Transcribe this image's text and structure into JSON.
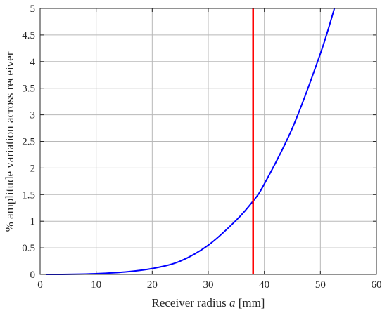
{
  "chart_data": {
    "type": "line",
    "title": "",
    "xlabel": "Receiver radius a [mm]",
    "xlabel_parts": {
      "prefix": "Receiver radius ",
      "italic": "a",
      "suffix": " [mm]"
    },
    "ylabel": "% amplitude variation across receiver",
    "xlim": [
      0,
      60
    ],
    "ylim": [
      0,
      5
    ],
    "xticks": [
      0,
      10,
      20,
      30,
      40,
      50,
      60
    ],
    "yticks": [
      0,
      0.5,
      1,
      1.5,
      2,
      2.5,
      3,
      3.5,
      4,
      4.5,
      5
    ],
    "xtick_labels": [
      "0",
      "10",
      "20",
      "30",
      "40",
      "50",
      "60"
    ],
    "ytick_labels": [
      "0",
      "0.5",
      "1",
      "1.5",
      "2",
      "2.5",
      "3",
      "3.5",
      "4",
      "4.5",
      "5"
    ],
    "grid": true,
    "series": [
      {
        "color": "#0000ff",
        "x": [
          1,
          5,
          10,
          15,
          20,
          25,
          30,
          35,
          38,
          40,
          45,
          50,
          52.5
        ],
        "y": [
          0,
          0.001,
          0.014,
          0.044,
          0.11,
          0.25,
          0.55,
          1.02,
          1.38,
          1.7,
          2.75,
          4.15,
          5.0
        ]
      }
    ],
    "vline": {
      "x": 38,
      "color": "#ff0000"
    }
  }
}
